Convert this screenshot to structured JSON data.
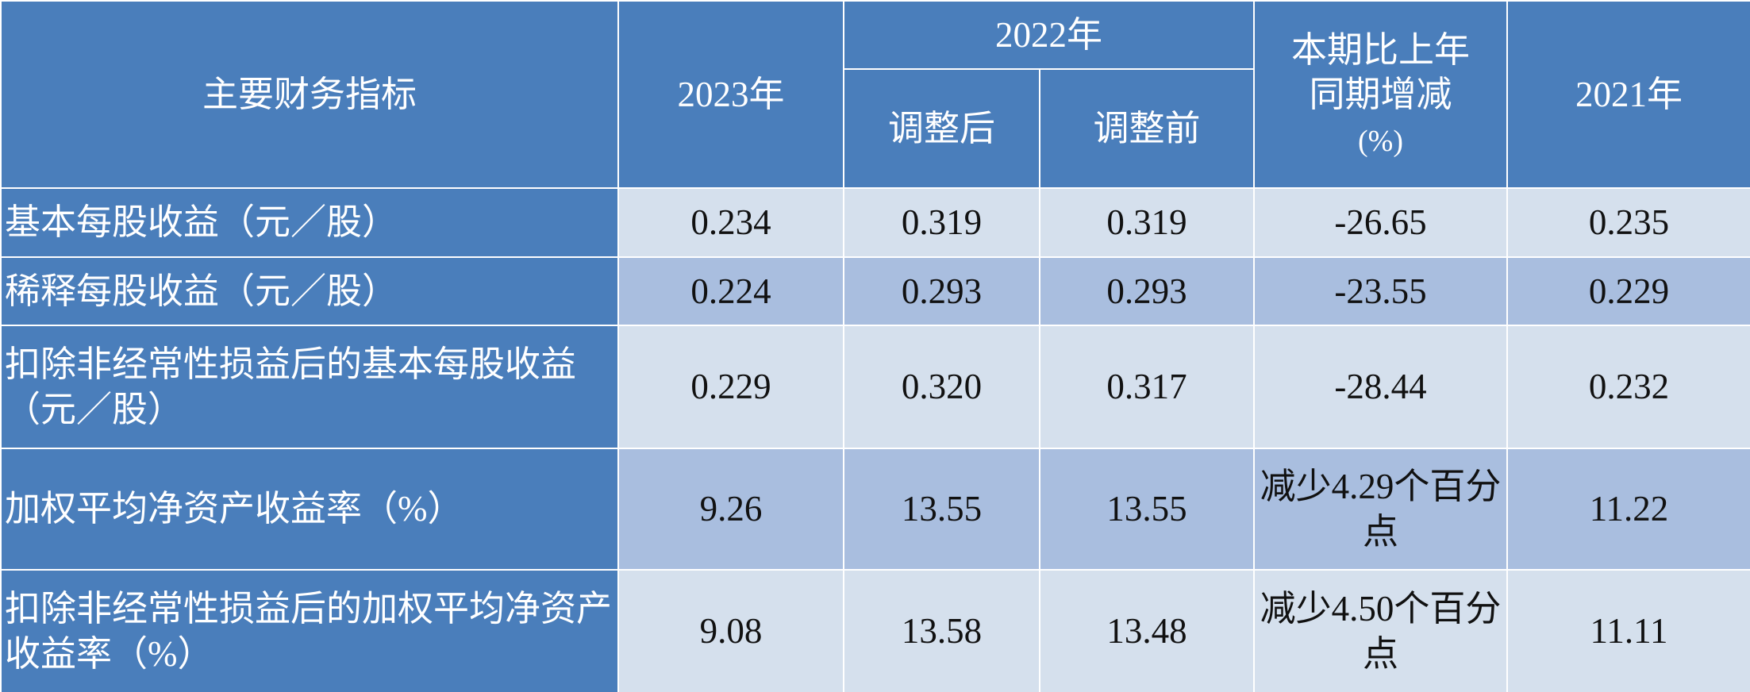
{
  "table": {
    "header": {
      "indicator": "主要财务指标",
      "y2023": "2023年",
      "y2022": "2022年",
      "adjusted_after": "调整后",
      "adjusted_before": "调整前",
      "change": [
        "本期比上年",
        "同期增减",
        "(%)"
      ],
      "y2021": "2021年"
    },
    "rows": [
      [
        "基本每股收益（元／股）",
        "0.234",
        "0.319",
        "0.319",
        "-26.65",
        "0.235"
      ],
      [
        "稀释每股收益（元／股）",
        "0.224",
        "0.293",
        "0.293",
        "-23.55",
        "0.229"
      ],
      [
        "扣除非经常性损益后的基本每股收益（元／股）",
        "0.229",
        "0.320",
        "0.317",
        "-28.44",
        "0.232"
      ],
      [
        "加权平均净资产收益率（%）",
        "9.26",
        "13.55",
        "13.55",
        "减少4.29个百分点",
        "11.22"
      ],
      [
        "扣除非经常性损益后的加权平均净资产收益率（%）",
        "9.08",
        "13.58",
        "13.48",
        "减少4.50个百分点",
        "11.11"
      ]
    ]
  }
}
